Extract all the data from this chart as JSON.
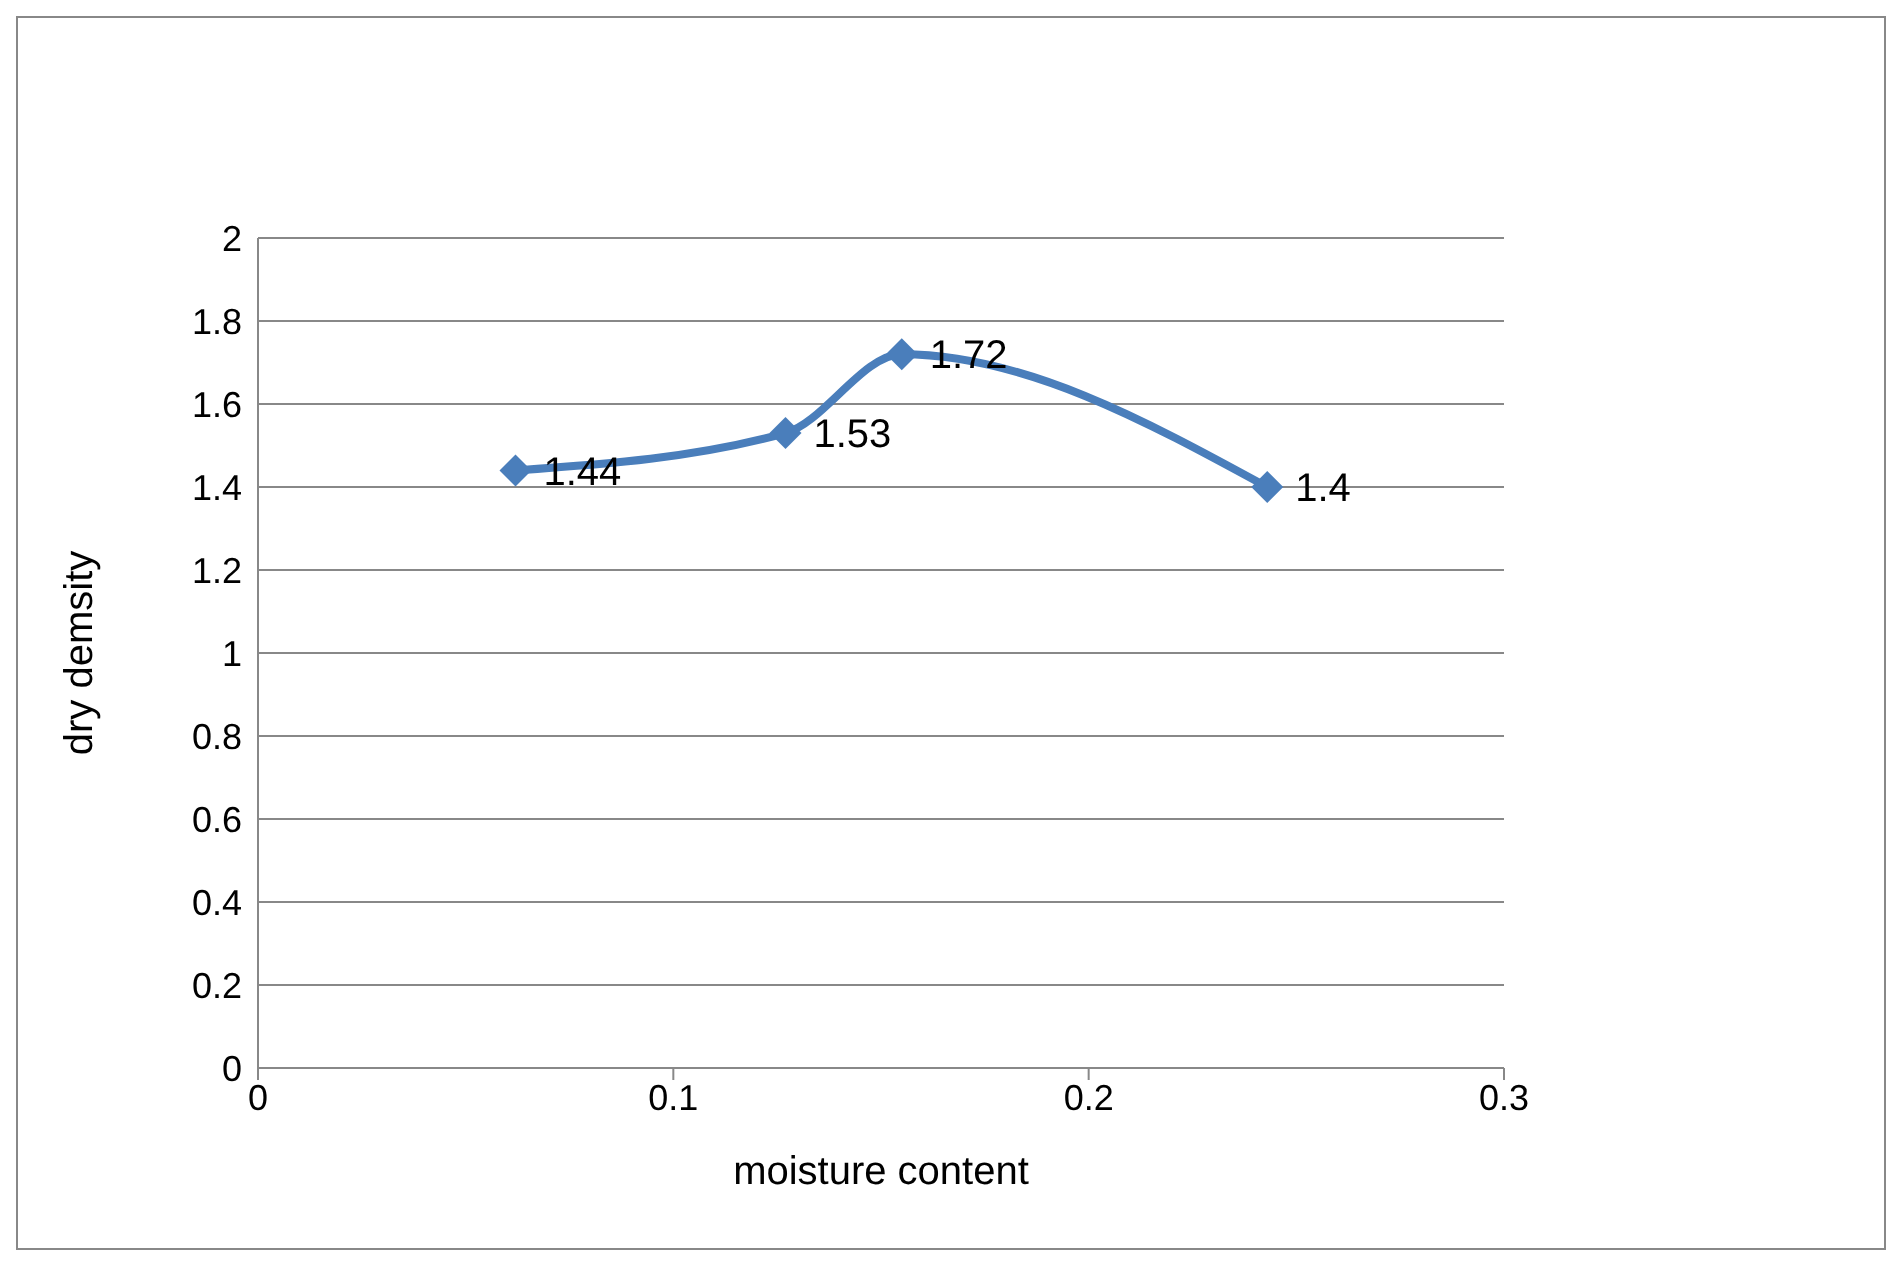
{
  "chart_data": {
    "type": "line",
    "xlabel": "moisture content",
    "ylabel": "dry demsity",
    "x": [
      0.062,
      0.127,
      0.155,
      0.243
    ],
    "series": [
      {
        "color": "#4a7ebb",
        "values": [
          1.44,
          1.53,
          1.72,
          1.4
        ]
      }
    ],
    "xlim": [
      0,
      0.3
    ],
    "xticks": [
      0,
      0.1,
      0.2,
      0.3
    ],
    "ylim": [
      0,
      2
    ],
    "yticks": [
      0,
      0.2,
      0.4,
      0.6,
      0.8,
      1,
      1.2,
      1.4,
      1.6,
      1.8,
      2
    ],
    "grid": "y",
    "marker": "diamond",
    "line_style": "solid",
    "data_labels": true,
    "legend": false
  }
}
